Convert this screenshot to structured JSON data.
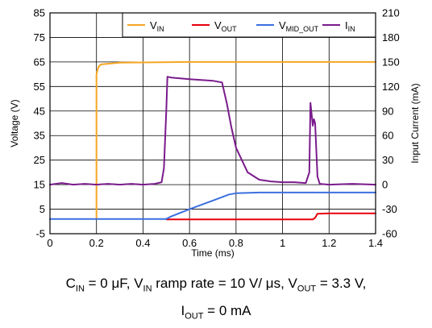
{
  "chart_data": {
    "type": "line",
    "xlabel": "Time (ms)",
    "ylabel_left": "Voltage (V)",
    "ylabel_right": "Input Current (mA)",
    "xlim": [
      0,
      1.4
    ],
    "ylim_left": [
      -5,
      85
    ],
    "ylim_right": [
      -60,
      210
    ],
    "xticks": [
      "0",
      "0.2",
      "0.4",
      "0.6",
      "0.8",
      "1",
      "1.2",
      "1.4"
    ],
    "yticks_left": [
      "-5",
      "5",
      "15",
      "25",
      "35",
      "45",
      "55",
      "65",
      "75",
      "85"
    ],
    "yticks_right": [
      "-60",
      "-30",
      "0",
      "30",
      "60",
      "90",
      "120",
      "150",
      "180",
      "210"
    ],
    "grid": true,
    "legend_placement": "top-right",
    "series": [
      {
        "key": "vin",
        "sub": "IN",
        "color": "#f5a623",
        "axis": "left",
        "points": [
          [
            0.2,
            1
          ],
          [
            0.2,
            60
          ],
          [
            0.205,
            62
          ],
          [
            0.212,
            63.5
          ],
          [
            0.22,
            64
          ],
          [
            0.3,
            64.7
          ],
          [
            0.6,
            65
          ],
          [
            1.0,
            65
          ],
          [
            1.4,
            65
          ]
        ]
      },
      {
        "key": "vout",
        "sub": "OUT",
        "color": "#e8000b",
        "axis": "left",
        "points": [
          [
            0.5,
            0.8
          ],
          [
            1.13,
            0.8
          ],
          [
            1.14,
            1.5
          ],
          [
            1.15,
            3.1
          ],
          [
            1.2,
            3.3
          ],
          [
            1.4,
            3.3
          ]
        ]
      },
      {
        "key": "vmid",
        "sub": "MID_OUT",
        "color": "#3b6fe0",
        "axis": "left",
        "points": [
          [
            0,
            1
          ],
          [
            0.2,
            1
          ],
          [
            0.5,
            1
          ],
          [
            0.52,
            2
          ],
          [
            0.6,
            5
          ],
          [
            0.7,
            8.5
          ],
          [
            0.77,
            11
          ],
          [
            0.8,
            11.5
          ],
          [
            0.9,
            11.8
          ],
          [
            1.2,
            11.8
          ],
          [
            1.4,
            11.8
          ]
        ]
      },
      {
        "key": "iin",
        "sub": "IN",
        "color": "#7a1b8c",
        "axis": "right",
        "points": [
          [
            0,
            0
          ],
          [
            0.05,
            2
          ],
          [
            0.1,
            0
          ],
          [
            0.15,
            1
          ],
          [
            0.2,
            0
          ],
          [
            0.25,
            1
          ],
          [
            0.3,
            0
          ],
          [
            0.35,
            1
          ],
          [
            0.4,
            0
          ],
          [
            0.45,
            1
          ],
          [
            0.48,
            3
          ],
          [
            0.49,
            20
          ],
          [
            0.5,
            90
          ],
          [
            0.505,
            132
          ],
          [
            0.52,
            131
          ],
          [
            0.6,
            129
          ],
          [
            0.65,
            128
          ],
          [
            0.7,
            127
          ],
          [
            0.74,
            125
          ],
          [
            0.76,
            100
          ],
          [
            0.78,
            70
          ],
          [
            0.8,
            45
          ],
          [
            0.85,
            15
          ],
          [
            0.9,
            6
          ],
          [
            0.95,
            4
          ],
          [
            1.0,
            3
          ],
          [
            1.05,
            3
          ],
          [
            1.1,
            2
          ],
          [
            1.115,
            15
          ],
          [
            1.12,
            100
          ],
          [
            1.13,
            72
          ],
          [
            1.135,
            80
          ],
          [
            1.14,
            75
          ],
          [
            1.15,
            10
          ],
          [
            1.16,
            1
          ],
          [
            1.2,
            0
          ],
          [
            1.3,
            1
          ],
          [
            1.4,
            0
          ]
        ]
      }
    ]
  },
  "legend": [
    {
      "key": "vin",
      "main": "V",
      "sub": "IN"
    },
    {
      "key": "vout",
      "main": "V",
      "sub": "OUT"
    },
    {
      "key": "vmid",
      "main": "V",
      "sub": "MID_OUT"
    },
    {
      "key": "iin",
      "main": "I",
      "sub": "IN"
    }
  ],
  "caption": {
    "line1_parts": [
      "C",
      "IN",
      " = 0 μF, V",
      "IN",
      " ramp rate = 10 V/ μs, V",
      "OUT",
      " = 3.3 V,"
    ],
    "line2_parts": [
      "I",
      "OUT",
      " = 0 mA"
    ]
  }
}
